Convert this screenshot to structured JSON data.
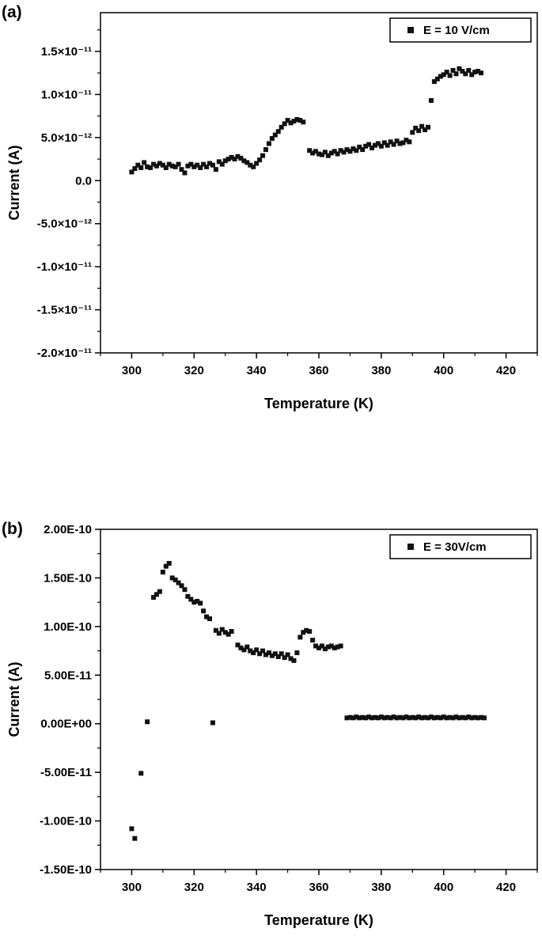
{
  "page": {
    "background": "#ffffff",
    "text_color": "#000000"
  },
  "chart_data": [
    {
      "type": "scatter",
      "panel_label": "(a)",
      "legend_label": "E = 10 V/cm",
      "legend_position": "top-right",
      "xlabel": "Temperature (K)",
      "ylabel": "Current (A)",
      "xlim": [
        290,
        430
      ],
      "ylim": [
        -2e-11,
        1.95e-11
      ],
      "xticks": [
        300,
        320,
        340,
        360,
        380,
        400,
        420
      ],
      "x_minor_step": 10,
      "yticks": [
        {
          "value": 1.5e-11,
          "label": "1.5×10⁻¹¹"
        },
        {
          "value": 1e-11,
          "label": "1.0×10⁻¹¹"
        },
        {
          "value": 5e-12,
          "label": "5.0×10⁻¹²"
        },
        {
          "value": 0,
          "label": "0.0"
        },
        {
          "value": -5e-12,
          "label": "-5.0×10⁻¹²"
        },
        {
          "value": -1e-11,
          "label": "-1.0×10⁻¹¹"
        },
        {
          "value": -1.5e-11,
          "label": "-1.5×10⁻¹¹"
        },
        {
          "value": -2e-11,
          "label": "-2.0×10⁻¹¹"
        }
      ],
      "grid": false,
      "marker": "square",
      "marker_color": "#111111",
      "points": [
        [
          300,
          1e-12
        ],
        [
          301,
          1.4e-12
        ],
        [
          302,
          1.8e-12
        ],
        [
          303,
          1.5e-12
        ],
        [
          304,
          2.1e-12
        ],
        [
          305,
          1.6e-12
        ],
        [
          306,
          1.5e-12
        ],
        [
          307,
          1.9e-12
        ],
        [
          308,
          1.7e-12
        ],
        [
          309,
          2e-12
        ],
        [
          310,
          1.8e-12
        ],
        [
          311,
          1.5e-12
        ],
        [
          312,
          1.9e-12
        ],
        [
          313,
          1.7e-12
        ],
        [
          314,
          1.6e-12
        ],
        [
          315,
          1.9e-12
        ],
        [
          316,
          1.3e-12
        ],
        [
          317,
          9e-13
        ],
        [
          318,
          1.7e-12
        ],
        [
          319,
          1.9e-12
        ],
        [
          320,
          1.6e-12
        ],
        [
          321,
          1.8e-12
        ],
        [
          322,
          1.5e-12
        ],
        [
          323,
          1.9e-12
        ],
        [
          324,
          1.6e-12
        ],
        [
          325,
          2e-12
        ],
        [
          326,
          1.8e-12
        ],
        [
          327,
          1.3e-12
        ],
        [
          328,
          2.2e-12
        ],
        [
          329,
          1.9e-12
        ],
        [
          330,
          2.3e-12
        ],
        [
          331,
          2.5e-12
        ],
        [
          332,
          2.7e-12
        ],
        [
          333,
          2.5e-12
        ],
        [
          334,
          2.8e-12
        ],
        [
          335,
          2.6e-12
        ],
        [
          336,
          2.3e-12
        ],
        [
          337,
          2.1e-12
        ],
        [
          338,
          1.8e-12
        ],
        [
          339,
          1.6e-12
        ],
        [
          340,
          2e-12
        ],
        [
          341,
          2.4e-12
        ],
        [
          342,
          2.9e-12
        ],
        [
          343,
          3.6e-12
        ],
        [
          344,
          4.3e-12
        ],
        [
          345,
          4.9e-12
        ],
        [
          346,
          5.3e-12
        ],
        [
          347,
          5.7e-12
        ],
        [
          348,
          6.2e-12
        ],
        [
          349,
          6.6e-12
        ],
        [
          350,
          7e-12
        ],
        [
          351,
          6.7e-12
        ],
        [
          352,
          6.9e-12
        ],
        [
          353,
          7.1e-12
        ],
        [
          354,
          7e-12
        ],
        [
          355,
          6.8e-12
        ],
        [
          357,
          3.5e-12
        ],
        [
          358,
          3.2e-12
        ],
        [
          359,
          3.4e-12
        ],
        [
          360,
          3.1e-12
        ],
        [
          361,
          3e-12
        ],
        [
          362,
          3.3e-12
        ],
        [
          363,
          2.9e-12
        ],
        [
          364,
          3.2e-12
        ],
        [
          365,
          3.4e-12
        ],
        [
          366,
          3.1e-12
        ],
        [
          367,
          3.5e-12
        ],
        [
          368,
          3.3e-12
        ],
        [
          369,
          3.6e-12
        ],
        [
          370,
          3.4e-12
        ],
        [
          371,
          3.7e-12
        ],
        [
          372,
          3.5e-12
        ],
        [
          373,
          3.9e-12
        ],
        [
          374,
          3.6e-12
        ],
        [
          375,
          4e-12
        ],
        [
          376,
          4.2e-12
        ],
        [
          377,
          3.8e-12
        ],
        [
          378,
          4.1e-12
        ],
        [
          379,
          4.3e-12
        ],
        [
          380,
          4e-12
        ],
        [
          381,
          4.4e-12
        ],
        [
          382,
          4.1e-12
        ],
        [
          383,
          4.5e-12
        ],
        [
          384,
          4.2e-12
        ],
        [
          385,
          4.6e-12
        ],
        [
          386,
          4.3e-12
        ],
        [
          387,
          4.4e-12
        ],
        [
          388,
          4.7e-12
        ],
        [
          389,
          4.5e-12
        ],
        [
          390,
          5.6e-12
        ],
        [
          391,
          6.1e-12
        ],
        [
          392,
          5.8e-12
        ],
        [
          393,
          6.3e-12
        ],
        [
          394,
          5.9e-12
        ],
        [
          395,
          6.2e-12
        ],
        [
          396,
          9.3e-12
        ],
        [
          397,
          1.15e-11
        ],
        [
          398,
          1.18e-11
        ],
        [
          399,
          1.21e-11
        ],
        [
          400,
          1.23e-11
        ],
        [
          401,
          1.26e-11
        ],
        [
          402,
          1.22e-11
        ],
        [
          403,
          1.28e-11
        ],
        [
          404,
          1.24e-11
        ],
        [
          405,
          1.3e-11
        ],
        [
          406,
          1.27e-11
        ],
        [
          407,
          1.24e-11
        ],
        [
          408,
          1.28e-11
        ],
        [
          409,
          1.23e-11
        ],
        [
          410,
          1.26e-11
        ],
        [
          411,
          1.27e-11
        ],
        [
          412,
          1.25e-11
        ]
      ]
    },
    {
      "type": "scatter",
      "panel_label": "(b)",
      "legend_label": "E = 30V/cm",
      "legend_position": "top-right",
      "xlabel": "Temperature (K)",
      "ylabel": "Current (A)",
      "xlim": [
        290,
        430
      ],
      "ylim": [
        -1.5e-10,
        2e-10
      ],
      "xticks": [
        300,
        320,
        340,
        360,
        380,
        400,
        420
      ],
      "x_minor_step": 10,
      "yticks": [
        {
          "value": 2e-10,
          "label": "2.00E-10"
        },
        {
          "value": 1.5e-10,
          "label": "1.50E-10"
        },
        {
          "value": 1e-10,
          "label": "1.00E-10"
        },
        {
          "value": 5e-11,
          "label": "5.00E-11"
        },
        {
          "value": 0,
          "label": "0.00E+00"
        },
        {
          "value": -5e-11,
          "label": "-5.00E-11"
        },
        {
          "value": -1e-10,
          "label": "-1.00E-10"
        },
        {
          "value": -1.5e-10,
          "label": "-1.50E-10"
        }
      ],
      "grid": false,
      "marker": "square",
      "marker_color": "#111111",
      "points": [
        [
          300,
          -1.08e-10
        ],
        [
          301,
          -1.18e-10
        ],
        [
          303,
          -5.1e-11
        ],
        [
          305,
          2e-12
        ],
        [
          307,
          1.3e-10
        ],
        [
          308,
          1.33e-10
        ],
        [
          309,
          1.36e-10
        ],
        [
          310,
          1.56e-10
        ],
        [
          311,
          1.62e-10
        ],
        [
          312,
          1.65e-10
        ],
        [
          313,
          1.5e-10
        ],
        [
          314,
          1.48e-10
        ],
        [
          315,
          1.45e-10
        ],
        [
          316,
          1.42e-10
        ],
        [
          317,
          1.38e-10
        ],
        [
          318,
          1.31e-10
        ],
        [
          319,
          1.28e-10
        ],
        [
          320,
          1.25e-10
        ],
        [
          321,
          1.26e-10
        ],
        [
          322,
          1.24e-10
        ],
        [
          323,
          1.16e-10
        ],
        [
          324,
          1.1e-10
        ],
        [
          325,
          1.08e-10
        ],
        [
          326,
          1e-12
        ],
        [
          327,
          9.6e-11
        ],
        [
          328,
          9.3e-11
        ],
        [
          329,
          9.7e-11
        ],
        [
          330,
          9.4e-11
        ],
        [
          331,
          9.2e-11
        ],
        [
          332,
          9.5e-11
        ],
        [
          334,
          8.1e-11
        ],
        [
          335,
          7.8e-11
        ],
        [
          336,
          7.6e-11
        ],
        [
          337,
          7.9e-11
        ],
        [
          338,
          7.5e-11
        ],
        [
          339,
          7.3e-11
        ],
        [
          340,
          7.6e-11
        ],
        [
          341,
          7.2e-11
        ],
        [
          342,
          7.5e-11
        ],
        [
          343,
          7.1e-11
        ],
        [
          344,
          7.3e-11
        ],
        [
          345,
          7e-11
        ],
        [
          346,
          7.2e-11
        ],
        [
          347,
          6.9e-11
        ],
        [
          348,
          7.2e-11
        ],
        [
          349,
          6.8e-11
        ],
        [
          350,
          7.1e-11
        ],
        [
          351,
          6.7e-11
        ],
        [
          352,
          6.5e-11
        ],
        [
          353,
          7.3e-11
        ],
        [
          354,
          8.9e-11
        ],
        [
          355,
          9.4e-11
        ],
        [
          356,
          9.6e-11
        ],
        [
          357,
          9.5e-11
        ],
        [
          358,
          8.6e-11
        ],
        [
          359,
          8e-11
        ],
        [
          360,
          7.8e-11
        ],
        [
          361,
          8e-11
        ],
        [
          362,
          7.7e-11
        ],
        [
          363,
          7.9e-11
        ],
        [
          364,
          8e-11
        ],
        [
          365,
          7.8e-11
        ],
        [
          366,
          7.9e-11
        ],
        [
          367,
          8e-11
        ],
        [
          369,
          6e-12
        ],
        [
          370,
          6.5e-12
        ],
        [
          371,
          6e-12
        ],
        [
          372,
          7e-12
        ],
        [
          373,
          6e-12
        ],
        [
          374,
          6.5e-12
        ],
        [
          375,
          6e-12
        ],
        [
          376,
          7e-12
        ],
        [
          377,
          6e-12
        ],
        [
          378,
          6.5e-12
        ],
        [
          379,
          6e-12
        ],
        [
          380,
          7e-12
        ],
        [
          381,
          6e-12
        ],
        [
          382,
          6.5e-12
        ],
        [
          383,
          6e-12
        ],
        [
          384,
          7e-12
        ],
        [
          385,
          6e-12
        ],
        [
          386,
          6.5e-12
        ],
        [
          387,
          6e-12
        ],
        [
          388,
          7e-12
        ],
        [
          389,
          6e-12
        ],
        [
          390,
          6.5e-12
        ],
        [
          391,
          6e-12
        ],
        [
          392,
          7e-12
        ],
        [
          393,
          6e-12
        ],
        [
          394,
          6.5e-12
        ],
        [
          395,
          6e-12
        ],
        [
          396,
          7e-12
        ],
        [
          397,
          6e-12
        ],
        [
          398,
          6.5e-12
        ],
        [
          399,
          6e-12
        ],
        [
          400,
          7e-12
        ],
        [
          401,
          6e-12
        ],
        [
          402,
          6.5e-12
        ],
        [
          403,
          6e-12
        ],
        [
          404,
          7e-12
        ],
        [
          405,
          6e-12
        ],
        [
          406,
          6.5e-12
        ],
        [
          407,
          6e-12
        ],
        [
          408,
          7e-12
        ],
        [
          409,
          6e-12
        ],
        [
          410,
          6.5e-12
        ],
        [
          411,
          6e-12
        ],
        [
          412,
          6.5e-12
        ],
        [
          413,
          6e-12
        ]
      ]
    }
  ]
}
